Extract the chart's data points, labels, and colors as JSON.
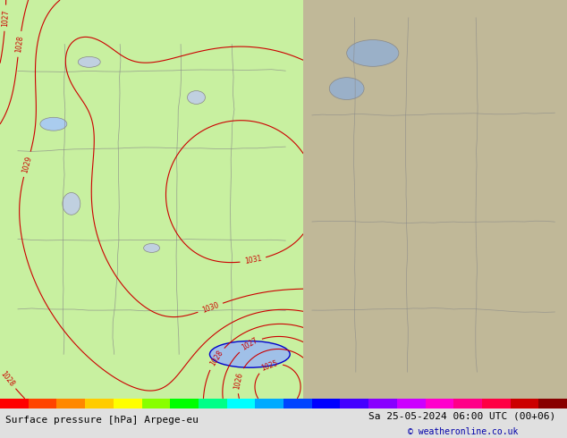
{
  "title_left": "Surface pressure [hPa] Arpege-eu",
  "title_right": "Sa 25-05-2024 06:00 UTC (00+06)",
  "copyright": "© weatheronline.co.uk",
  "fig_width": 6.34,
  "fig_height": 4.9,
  "left_bg_color": "#c8f0a0",
  "right_bg_color": "#c8c0a0",
  "land_color_left": "#c8f0a0",
  "sea_color_left": "#b0d8f8",
  "water_color": "#a0c8f0",
  "isobar_color": "#cc0000",
  "border_color": "#888888",
  "bottom_bar_color": "#e8e8e8",
  "pressure_min": 1013,
  "pressure_max": 1032,
  "pressure_step": 1,
  "colorbar_colors": [
    "#ff0000",
    "#ff8800",
    "#ffff00",
    "#00ff00",
    "#00ffff",
    "#0000ff",
    "#8800ff"
  ],
  "bottom_text_color": "#000000",
  "copyright_color": "#0000aa"
}
